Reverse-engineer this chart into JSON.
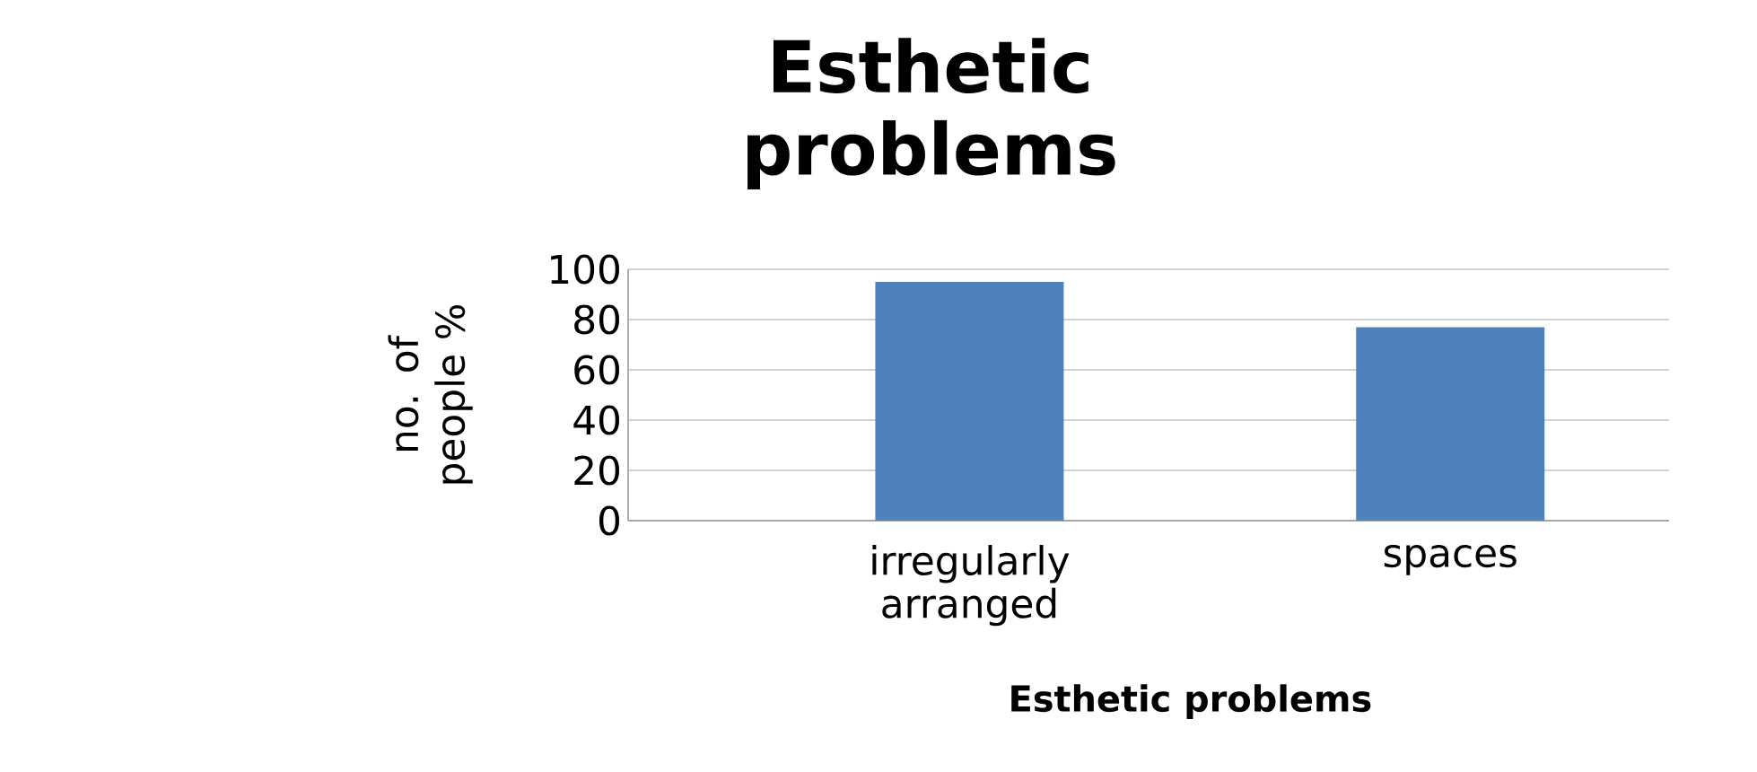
{
  "chart_data": {
    "type": "bar",
    "title": "Esthetic problems",
    "xlabel": "Esthetic problems",
    "ylabel": "no. of people %",
    "categories": [
      "irregularly arranged",
      "spaces"
    ],
    "values": [
      95,
      77
    ],
    "color": "#4f81bd",
    "ylim": [
      0,
      100
    ],
    "yticks": [
      0,
      20,
      40,
      60,
      80,
      100
    ],
    "grid": "y"
  }
}
